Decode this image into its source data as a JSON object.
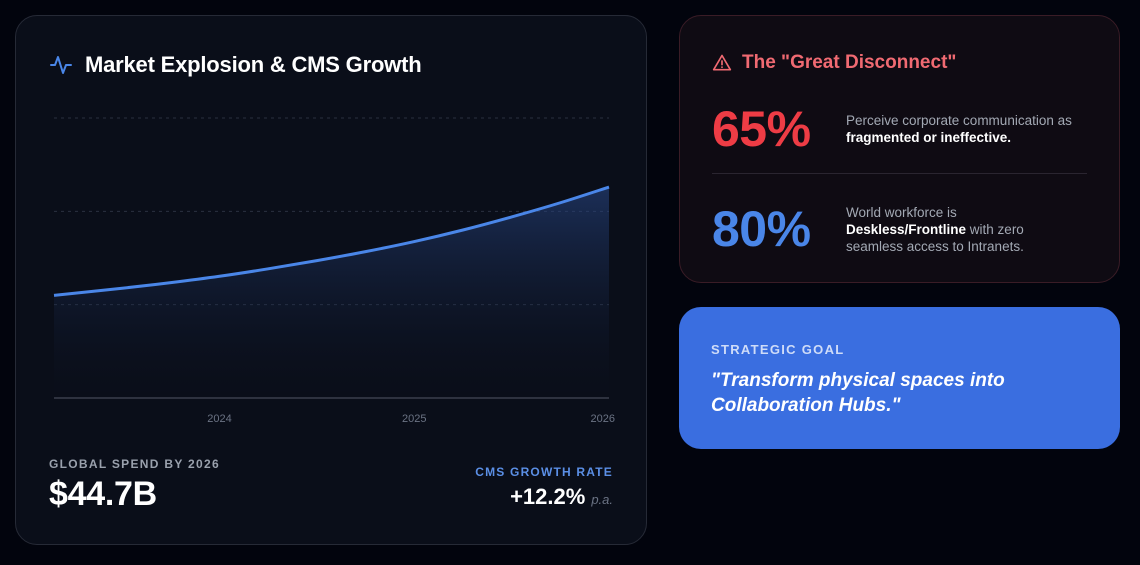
{
  "market": {
    "title": "Market Explosion & CMS Growth",
    "icon": "activity-pulse-icon",
    "spend_label": "GLOBAL SPEND BY 2026",
    "spend_value": "$44.7B",
    "growth_label": "CMS GROWTH RATE",
    "growth_value": "+12.2%",
    "growth_unit": "p.a."
  },
  "chart_data": {
    "type": "area",
    "x": [
      2023.15,
      2023.5,
      2023.75,
      2024,
      2024.25,
      2024.5,
      2024.75,
      2025,
      2025.25,
      2025.5,
      2025.75,
      2026
    ],
    "x_ticks": [
      "2024",
      "2025",
      "2026"
    ],
    "x_tick_values": [
      2024,
      2025,
      2026
    ],
    "y": [
      27.5,
      29.4,
      30.9,
      32.6,
      34.6,
      36.8,
      39.2,
      41.9,
      45.0,
      48.5,
      52.3,
      56.5
    ],
    "ylim": [
      0,
      75
    ],
    "title": "",
    "xlabel": "",
    "ylabel": "",
    "grid": "horizontal-dashed",
    "line_color": "#4a86e8"
  },
  "disconnect": {
    "title": "The \"Great Disconnect\"",
    "icon": "warning-triangle-icon",
    "metrics": [
      {
        "value": "65%",
        "text_pre": "Perceive corporate communication as ",
        "text_bold": "fragmented or ineffective.",
        "text_post": ""
      },
      {
        "value": "80%",
        "text_pre": "World workforce is ",
        "text_bold": "Deskless/Frontline",
        "text_post": " with zero seamless access to Intranets."
      }
    ]
  },
  "goal": {
    "label": "STRATEGIC GOAL",
    "quote": "\"Transform physical spaces into Collaboration Hubs.\""
  },
  "colors": {
    "accent_blue": "#4a86e8",
    "accent_red": "#ee3c45",
    "goal_card": "#3a6ee0"
  }
}
